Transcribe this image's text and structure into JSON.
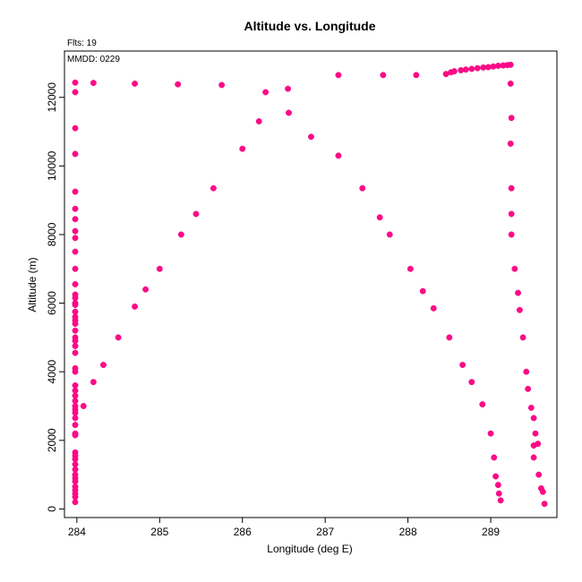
{
  "chart_data": {
    "type": "scatter",
    "title": "Altitude vs. Longitude",
    "xlabel": "Longitude (deg E)",
    "ylabel": "Altitude (m)",
    "xlim": [
      283.85,
      289.8
    ],
    "ylim": [
      -250,
      13350
    ],
    "xticks": [
      284,
      285,
      286,
      287,
      288,
      289
    ],
    "yticks": [
      0,
      2000,
      4000,
      6000,
      8000,
      10000,
      12000
    ],
    "annotations": [
      "Flts: 19",
      "MMDD: 0229"
    ],
    "grid": false,
    "color": "#ff0a88",
    "series": [
      {
        "name": "",
        "points": [
          [
            283.98,
            12430
          ],
          [
            283.98,
            12150
          ],
          [
            283.98,
            11100
          ],
          [
            283.98,
            10350
          ],
          [
            283.98,
            9250
          ],
          [
            283.98,
            8750
          ],
          [
            283.98,
            8450
          ],
          [
            283.98,
            8100
          ],
          [
            283.98,
            7900
          ],
          [
            283.98,
            7500
          ],
          [
            283.98,
            7000
          ],
          [
            283.98,
            6550
          ],
          [
            283.98,
            6250
          ],
          [
            283.98,
            6150
          ],
          [
            283.98,
            6000
          ],
          [
            283.98,
            5950
          ],
          [
            283.98,
            5750
          ],
          [
            283.98,
            5600
          ],
          [
            283.98,
            5500
          ],
          [
            283.98,
            5400
          ],
          [
            283.98,
            5200
          ],
          [
            283.98,
            5000
          ],
          [
            283.98,
            4900
          ],
          [
            283.98,
            4750
          ],
          [
            283.98,
            4550
          ],
          [
            283.98,
            4100
          ],
          [
            283.98,
            4000
          ],
          [
            283.98,
            3600
          ],
          [
            283.98,
            3450
          ],
          [
            283.98,
            3300
          ],
          [
            283.98,
            3150
          ],
          [
            283.98,
            3000
          ],
          [
            283.98,
            2900
          ],
          [
            283.98,
            2800
          ],
          [
            283.98,
            2650
          ],
          [
            283.98,
            2450
          ],
          [
            283.98,
            2200
          ],
          [
            283.98,
            2150
          ],
          [
            283.98,
            1650
          ],
          [
            283.98,
            1550
          ],
          [
            283.98,
            1450
          ],
          [
            283.98,
            1300
          ],
          [
            283.98,
            1150
          ],
          [
            283.98,
            1000
          ],
          [
            283.98,
            900
          ],
          [
            283.98,
            800
          ],
          [
            283.98,
            650
          ],
          [
            283.98,
            550
          ],
          [
            283.98,
            450
          ],
          [
            283.98,
            350
          ],
          [
            283.98,
            200
          ],
          [
            284.08,
            3000
          ],
          [
            284.2,
            3700
          ],
          [
            284.32,
            4200
          ],
          [
            284.5,
            5000
          ],
          [
            284.7,
            5900
          ],
          [
            284.83,
            6400
          ],
          [
            285.0,
            7000
          ],
          [
            285.26,
            8000
          ],
          [
            285.44,
            8600
          ],
          [
            285.65,
            9350
          ],
          [
            286.0,
            10500
          ],
          [
            286.2,
            11300
          ],
          [
            286.28,
            12150
          ],
          [
            286.56,
            11550
          ],
          [
            286.83,
            10850
          ],
          [
            287.16,
            10300
          ],
          [
            287.45,
            9350
          ],
          [
            287.66,
            8500
          ],
          [
            287.78,
            8000
          ],
          [
            288.03,
            7000
          ],
          [
            288.18,
            6350
          ],
          [
            288.31,
            5850
          ],
          [
            288.5,
            5000
          ],
          [
            288.66,
            4200
          ],
          [
            288.77,
            3700
          ],
          [
            288.9,
            3050
          ],
          [
            289.0,
            2200
          ],
          [
            289.04,
            1500
          ],
          [
            289.06,
            950
          ],
          [
            289.09,
            700
          ],
          [
            289.1,
            450
          ],
          [
            289.12,
            250
          ],
          [
            284.2,
            12420
          ],
          [
            284.7,
            12400
          ],
          [
            285.22,
            12380
          ],
          [
            285.75,
            12360
          ],
          [
            286.55,
            12250
          ],
          [
            287.16,
            12650
          ],
          [
            287.7,
            12650
          ],
          [
            288.1,
            12650
          ],
          [
            288.46,
            12680
          ],
          [
            288.52,
            12730
          ],
          [
            288.56,
            12760
          ],
          [
            288.64,
            12790
          ],
          [
            288.7,
            12810
          ],
          [
            288.77,
            12830
          ],
          [
            288.84,
            12850
          ],
          [
            288.91,
            12870
          ],
          [
            288.97,
            12880
          ],
          [
            289.03,
            12900
          ],
          [
            289.09,
            12920
          ],
          [
            289.15,
            12930
          ],
          [
            289.2,
            12940
          ],
          [
            289.24,
            12950
          ],
          [
            289.24,
            12400
          ],
          [
            289.25,
            11400
          ],
          [
            289.24,
            10650
          ],
          [
            289.25,
            9350
          ],
          [
            289.25,
            8600
          ],
          [
            289.25,
            8000
          ],
          [
            289.29,
            7000
          ],
          [
            289.33,
            6300
          ],
          [
            289.35,
            5800
          ],
          [
            289.39,
            5000
          ],
          [
            289.43,
            4000
          ],
          [
            289.45,
            3500
          ],
          [
            289.49,
            2950
          ],
          [
            289.52,
            2650
          ],
          [
            289.54,
            2200
          ],
          [
            289.57,
            1900
          ],
          [
            289.52,
            1850
          ],
          [
            289.52,
            1500
          ],
          [
            289.58,
            1000
          ],
          [
            289.61,
            600
          ],
          [
            289.63,
            500
          ],
          [
            289.65,
            150
          ]
        ]
      }
    ]
  }
}
